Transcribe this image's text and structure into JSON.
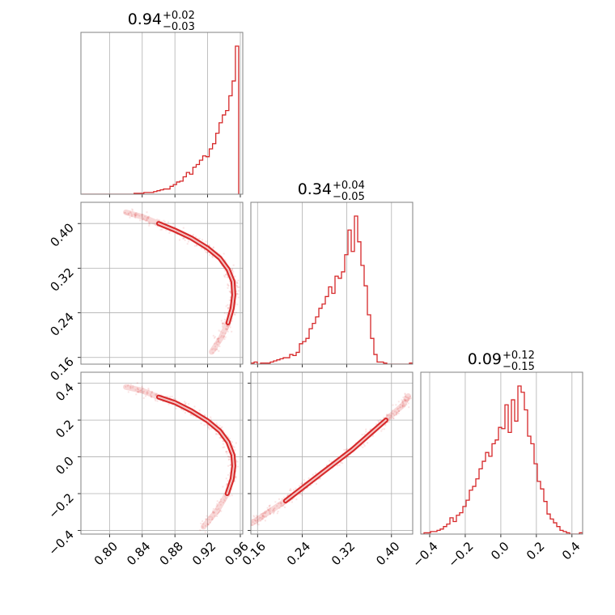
{
  "colors": {
    "accent": "#d62728",
    "grid": "#b0b0b0",
    "frame": "#808080"
  },
  "chart_data": {
    "type": "corner",
    "parameters": [
      "p1",
      "p2",
      "p3"
    ],
    "grid": true,
    "panels": [
      {
        "id": "p1-hist",
        "type": "histogram",
        "title": {
          "value": "0.94",
          "plus": "+0.02",
          "minus": "−0.03"
        },
        "xlim": [
          0.765,
          0.963
        ],
        "grid_x": [
          0.8,
          0.84,
          0.88,
          0.92,
          0.96
        ],
        "edges_start": 0.766,
        "bin_width": 0.004,
        "counts": [
          0,
          0,
          0,
          0,
          0,
          0,
          0,
          0,
          0,
          0,
          0,
          0,
          0,
          0,
          0,
          0,
          1,
          1,
          1,
          2,
          2,
          2,
          3,
          4,
          5,
          6,
          6,
          9,
          11,
          14,
          15,
          20,
          25,
          23,
          31,
          34,
          39,
          44,
          43,
          52,
          58,
          70,
          82,
          91,
          96,
          113,
          130,
          170
        ]
      },
      {
        "id": "p2-hist",
        "type": "histogram",
        "title": {
          "value": "0.34",
          "plus": "+0.04",
          "minus": "−0.05"
        },
        "xlim": [
          0.148,
          0.438
        ],
        "grid_x": [
          0.16,
          0.24,
          0.32,
          0.4
        ],
        "edges_start": 0.148,
        "bin_width": 0.0058,
        "counts": [
          1,
          2,
          0,
          1,
          1,
          1,
          2,
          3,
          4,
          5,
          6,
          6,
          9,
          8,
          11,
          19,
          21,
          24,
          33,
          38,
          44,
          52,
          56,
          63,
          72,
          66,
          82,
          80,
          86,
          102,
          125,
          105,
          138,
          114,
          92,
          73,
          46,
          24,
          9,
          2,
          2,
          1,
          0,
          0,
          0,
          0,
          0,
          0,
          0,
          1
        ]
      },
      {
        "id": "p3-hist",
        "type": "histogram",
        "title": {
          "value": "0.09",
          "plus": "+0.12",
          "minus": "−0.15"
        },
        "xlim": [
          -0.45,
          0.46
        ],
        "grid_x": [
          -0.4,
          -0.2,
          0.0,
          0.2,
          0.4
        ],
        "edges_start": -0.45,
        "bin_width": 0.0182,
        "counts": [
          0,
          1,
          1,
          2,
          2,
          3,
          4,
          6,
          8,
          13,
          10,
          15,
          17,
          22,
          27,
          35,
          38,
          44,
          52,
          58,
          65,
          62,
          72,
          75,
          85,
          84,
          103,
          81,
          107,
          90,
          118,
          113,
          99,
          78,
          72,
          56,
          42,
          36,
          26,
          16,
          12,
          9,
          6,
          3,
          2,
          1,
          0,
          0,
          0,
          1
        ]
      },
      {
        "id": "p1-p2",
        "type": "scatter_contour",
        "xlim": [
          0.765,
          0.963
        ],
        "ylim": [
          0.148,
          0.438
        ],
        "grid_x": [
          0.8,
          0.84,
          0.88,
          0.92,
          0.96
        ],
        "grid_y": [
          0.16,
          0.24,
          0.32,
          0.4
        ],
        "curve": [
          [
            0.82,
            0.42
          ],
          [
            0.84,
            0.412
          ],
          [
            0.86,
            0.4
          ],
          [
            0.88,
            0.388
          ],
          [
            0.9,
            0.374
          ],
          [
            0.92,
            0.356
          ],
          [
            0.935,
            0.338
          ],
          [
            0.945,
            0.318
          ],
          [
            0.951,
            0.296
          ],
          [
            0.952,
            0.272
          ],
          [
            0.95,
            0.248
          ],
          [
            0.945,
            0.222
          ],
          [
            0.936,
            0.194
          ],
          [
            0.925,
            0.17
          ]
        ]
      },
      {
        "id": "p1-p3",
        "type": "scatter_contour",
        "xlim": [
          0.765,
          0.963
        ],
        "ylim": [
          -0.42,
          0.46
        ],
        "grid_x": [
          0.8,
          0.84,
          0.88,
          0.92,
          0.96
        ],
        "grid_y": [
          -0.4,
          -0.2,
          0.0,
          0.2,
          0.4
        ],
        "curve": [
          [
            0.82,
            0.38
          ],
          [
            0.84,
            0.36
          ],
          [
            0.86,
            0.325
          ],
          [
            0.88,
            0.295
          ],
          [
            0.9,
            0.25
          ],
          [
            0.92,
            0.195
          ],
          [
            0.935,
            0.14
          ],
          [
            0.945,
            0.08
          ],
          [
            0.951,
            0.01
          ],
          [
            0.952,
            -0.05
          ],
          [
            0.95,
            -0.12
          ],
          [
            0.944,
            -0.2
          ],
          [
            0.932,
            -0.29
          ],
          [
            0.915,
            -0.38
          ]
        ]
      },
      {
        "id": "p2-p3",
        "type": "scatter_contour",
        "xlim": [
          0.148,
          0.438
        ],
        "ylim": [
          -0.42,
          0.46
        ],
        "grid_x": [
          0.16,
          0.24,
          0.32,
          0.4
        ],
        "grid_y": [
          -0.4,
          -0.2,
          0.0,
          0.2,
          0.4
        ],
        "curve": [
          [
            0.15,
            -0.36
          ],
          [
            0.18,
            -0.3
          ],
          [
            0.21,
            -0.24
          ],
          [
            0.24,
            -0.17
          ],
          [
            0.27,
            -0.1
          ],
          [
            0.3,
            -0.03
          ],
          [
            0.33,
            0.04
          ],
          [
            0.36,
            0.12
          ],
          [
            0.39,
            0.2
          ],
          [
            0.42,
            0.28
          ],
          [
            0.43,
            0.33
          ]
        ]
      }
    ],
    "tick_labels": {
      "p1_x": [
        "0.80",
        "0.84",
        "0.88",
        "0.92",
        "0.96"
      ],
      "p2_x": [
        "0.16",
        "0.24",
        "0.32",
        "0.40"
      ],
      "p3_x": [
        "−0.4",
        "−0.2",
        "0.0",
        "0.2",
        "0.4"
      ],
      "p2_y": [
        "0.40",
        "0.32",
        "0.24",
        "0.16"
      ],
      "p3_y": [
        "0.4",
        "0.2",
        "0.0",
        "−0.2",
        "−0.4"
      ]
    }
  }
}
